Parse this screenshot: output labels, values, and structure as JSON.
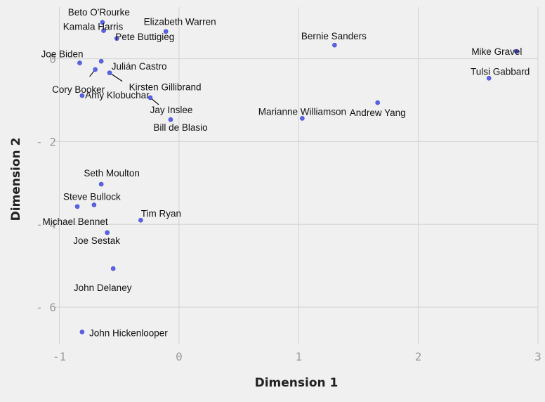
{
  "chart_data": {
    "type": "scatter",
    "title": "",
    "xlabel": "Dimension 1",
    "ylabel": "Dimension 2",
    "xlim": [
      -1.05,
      3.0
    ],
    "ylim": [
      -6.9,
      1.25
    ],
    "x_ticks": [
      -1,
      0,
      1,
      2,
      3
    ],
    "y_ticks": [
      0,
      -2,
      -4,
      -6
    ],
    "x_tick_labels": [
      "-1",
      "0",
      "1",
      "2",
      "3"
    ],
    "y_tick_labels": [
      "0",
      "- 2",
      "- 4",
      "- 6"
    ],
    "grid": true,
    "legend": "none",
    "point_color": "#5a62e6",
    "background": "#f0f0f0",
    "points": [
      {
        "label": "Beto O'Rourke",
        "x": -0.64,
        "y": 0.88
      },
      {
        "label": "Kamala Harris",
        "x": -0.63,
        "y": 0.68
      },
      {
        "label": "Elizabeth Warren",
        "x": -0.11,
        "y": 0.66
      },
      {
        "label": "Pete Buttigieg",
        "x": -0.52,
        "y": 0.49
      },
      {
        "label": "Bernie Sanders",
        "x": 1.3,
        "y": 0.33
      },
      {
        "label": "Mike Gravel",
        "x": 2.82,
        "y": 0.18
      },
      {
        "label": "Joe Biden",
        "x": -0.83,
        "y": -0.1
      },
      {
        "label": "Julián Castro",
        "x": -0.65,
        "y": -0.06
      },
      {
        "label": "Cory Booker",
        "x": -0.7,
        "y": -0.26
      },
      {
        "label": "Kirsten Gillibrand",
        "x": -0.58,
        "y": -0.34
      },
      {
        "label": "Tulsi Gabbard",
        "x": 2.59,
        "y": -0.47
      },
      {
        "label": "Amy Klobuchar",
        "x": -0.81,
        "y": -0.89
      },
      {
        "label": "Jay Inslee",
        "x": -0.24,
        "y": -0.94
      },
      {
        "label": "Andrew Yang",
        "x": 1.66,
        "y": -1.06
      },
      {
        "label": "Marianne Williamson",
        "x": 1.03,
        "y": -1.44
      },
      {
        "label": "Bill de Blasio",
        "x": -0.07,
        "y": -1.47
      },
      {
        "label": "Seth Moulton",
        "x": -0.65,
        "y": -3.03
      },
      {
        "label": "Steve Bullock",
        "x": -0.71,
        "y": -3.53
      },
      {
        "label": "Michael Bennet",
        "x": -0.85,
        "y": -3.57
      },
      {
        "label": "Tim Ryan",
        "x": -0.32,
        "y": -3.9
      },
      {
        "label": "Joe Sestak",
        "x": -0.6,
        "y": -4.2
      },
      {
        "label": "John Delaney",
        "x": -0.55,
        "y": -5.07
      },
      {
        "label": "John Hickenlooper",
        "x": -0.81,
        "y": -6.6
      }
    ]
  }
}
